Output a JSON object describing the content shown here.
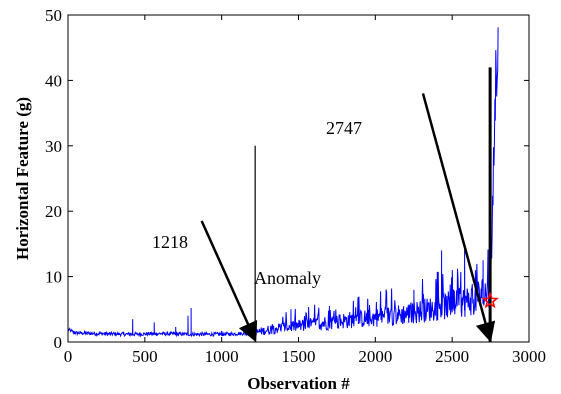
{
  "chart_data": {
    "type": "line",
    "title": "",
    "xlabel": "Observation #",
    "ylabel": "Horizontal Feature (g)",
    "xlim": [
      0,
      3000
    ],
    "ylim": [
      0,
      50
    ],
    "xticks": [
      "0",
      "500",
      "1000",
      "1500",
      "2000",
      "2500",
      "3000"
    ],
    "yticks": [
      "0",
      "10",
      "20",
      "30",
      "40",
      "50"
    ],
    "grid": false,
    "legend": "none",
    "series": [
      {
        "color": "#0000ff",
        "trend": {
          "x": [
            0,
            50,
            200,
            400,
            600,
            800,
            1000,
            1218,
            1400,
            1600,
            1800,
            2000,
            2200,
            2400,
            2600,
            2700,
            2747,
            2760,
            2780,
            2800
          ],
          "y": [
            1.8,
            1.3,
            1.2,
            1.1,
            1.2,
            1.1,
            1.1,
            1.3,
            2.0,
            2.4,
            2.9,
            3.3,
            3.8,
            4.6,
            5.5,
            6.5,
            7.0,
            15,
            35,
            48
          ]
        },
        "spikes": [
          {
            "x": 420,
            "y": 3.5
          },
          {
            "x": 560,
            "y": 3.0
          },
          {
            "x": 700,
            "y": 2.3
          },
          {
            "x": 780,
            "y": 4.0
          },
          {
            "x": 800,
            "y": 5.2
          },
          {
            "x": 1000,
            "y": 1.7
          },
          {
            "x": 1450,
            "y": 5.0
          },
          {
            "x": 1700,
            "y": 5.5
          },
          {
            "x": 1950,
            "y": 6.5
          },
          {
            "x": 2250,
            "y": 8.0
          },
          {
            "x": 2430,
            "y": 14.0
          },
          {
            "x": 2500,
            "y": 11.0
          },
          {
            "x": 2580,
            "y": 14.5
          },
          {
            "x": 2650,
            "y": 11.0
          },
          {
            "x": 2700,
            "y": 12.5
          }
        ]
      }
    ],
    "vlines": [
      {
        "x": 1218,
        "y_top": 30
      },
      {
        "x": 2747,
        "y_top": 42
      }
    ],
    "marker": {
      "x": 2747,
      "y": 6.3,
      "symbol": "star",
      "color": "#ff0000"
    },
    "annotations": [
      {
        "text": "1218",
        "from": {
          "x": 870,
          "y": 18.5
        },
        "to": {
          "x": 1218,
          "y": 0
        }
      },
      {
        "text": "2747",
        "from": {
          "x": 2310,
          "y": 38.0
        },
        "to": {
          "x": 2747,
          "y": 0
        }
      },
      {
        "text": "Anomaly"
      }
    ]
  }
}
